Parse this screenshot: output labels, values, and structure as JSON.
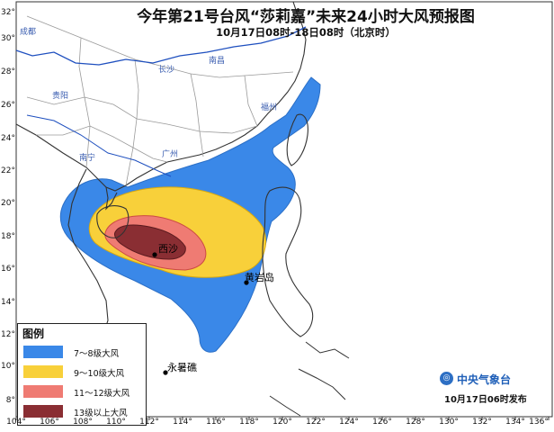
{
  "title": "今年第21号台风“莎莉嘉”未来24小时大风预报图",
  "subtitle": "10月17日08时-18日08时（北京时）",
  "legend": {
    "title": "图例",
    "items": [
      {
        "label": "7～8级大风",
        "color": "#3a88e8"
      },
      {
        "label": "9～10级大风",
        "color": "#f8d03a"
      },
      {
        "label": "11～12级大风",
        "color": "#ef7b73"
      },
      {
        "label": "13级以上大风",
        "color": "#8a2e33"
      }
    ]
  },
  "places": {
    "xisha": "西沙",
    "huangyan": "黄岩岛",
    "yongshu": "永暑礁"
  },
  "cities": {
    "chengdu": "成都",
    "changsha": "长沙",
    "nanchang": "南昌",
    "guiyang": "贵阳",
    "fuzhou": "福州",
    "nanning": "南宁",
    "guangzhou": "广州"
  },
  "axes": {
    "x_ticks": [
      "104°",
      "106°",
      "108°",
      "110°",
      "112°",
      "114°",
      "116°",
      "118°",
      "120°",
      "122°",
      "124°",
      "126°",
      "128°",
      "130°",
      "132°",
      "134°",
      "136°"
    ],
    "y_ticks": [
      "32°",
      "30°",
      "28°",
      "26°",
      "24°",
      "22°",
      "20°",
      "18°",
      "16°",
      "14°",
      "12°",
      "10°",
      "8°"
    ]
  },
  "issuer": {
    "logo_glyph": "◎",
    "name": "中央气象台",
    "issued_text": "10月17日06时发布"
  },
  "colors": {
    "land_outline": "#333333",
    "province_border": "#9a9a9a",
    "river": "#1e4fbf",
    "sea": "#ffffff",
    "frame": "#333333"
  }
}
